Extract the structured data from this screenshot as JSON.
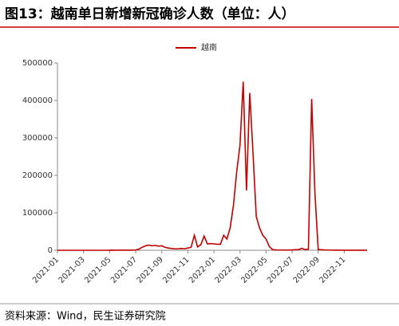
{
  "chart_data": {
    "type": "line",
    "title": "图13：越南单日新增新冠确诊人数（单位：人）",
    "source": "资料来源：Wind，民生证券研究院",
    "x": [
      "2021-01",
      "2021-01",
      "2021-01",
      "2021-01",
      "2021-02",
      "2021-02",
      "2021-02",
      "2021-02",
      "2021-03",
      "2021-03",
      "2021-03",
      "2021-03",
      "2021-04",
      "2021-04",
      "2021-04",
      "2021-04",
      "2021-05",
      "2021-05",
      "2021-05",
      "2021-05",
      "2021-06",
      "2021-06",
      "2021-06",
      "2021-06",
      "2021-07",
      "2021-07",
      "2021-07",
      "2021-07",
      "2021-08",
      "2021-08",
      "2021-08",
      "2021-08",
      "2021-09",
      "2021-09",
      "2021-09",
      "2021-09",
      "2021-10",
      "2021-10",
      "2021-10",
      "2021-10",
      "2021-11",
      "2021-11",
      "2021-11",
      "2021-11",
      "2021-12",
      "2021-12",
      "2021-12",
      "2021-12",
      "2022-01",
      "2022-01",
      "2022-01",
      "2022-01",
      "2022-02",
      "2022-02",
      "2022-02",
      "2022-02",
      "2022-03",
      "2022-03",
      "2022-03",
      "2022-03",
      "2022-04",
      "2022-04",
      "2022-04",
      "2022-04",
      "2022-05",
      "2022-05",
      "2022-05",
      "2022-05",
      "2022-06",
      "2022-06",
      "2022-06",
      "2022-06",
      "2022-07",
      "2022-07",
      "2022-07",
      "2022-07",
      "2022-08",
      "2022-08",
      "2022-08",
      "2022-08",
      "2022-09",
      "2022-09",
      "2022-09",
      "2022-09",
      "2022-10",
      "2022-10",
      "2022-10",
      "2022-10",
      "2022-11",
      "2022-11",
      "2022-11",
      "2022-11",
      "2022-12",
      "2022-12",
      "2022-12",
      "2022-12"
    ],
    "series": [
      {
        "name": "越南",
        "color": "#c00000",
        "values": [
          0,
          0,
          0,
          0,
          0,
          0,
          0,
          0,
          0,
          0,
          0,
          0,
          0,
          0,
          0,
          0,
          100,
          300,
          200,
          300,
          500,
          300,
          400,
          300,
          1000,
          3000,
          8000,
          12000,
          14000,
          12000,
          13000,
          11000,
          12000,
          8000,
          6000,
          5000,
          4000,
          4000,
          5000,
          4000,
          6000,
          8000,
          40000,
          9000,
          15000,
          38000,
          17000,
          18000,
          17000,
          16000,
          16000,
          40000,
          30000,
          60000,
          120000,
          210000,
          280000,
          450000,
          160000,
          420000,
          260000,
          90000,
          60000,
          40000,
          30000,
          10000,
          2000,
          1000,
          800,
          600,
          500,
          700,
          1000,
          1500,
          2000,
          5000,
          2000,
          3000,
          404000,
          153000,
          2000,
          1500,
          1000,
          800,
          500,
          400,
          300,
          300,
          200,
          200,
          200,
          200,
          100,
          100,
          100,
          100
        ]
      }
    ],
    "ylim": [
      0,
      500000
    ],
    "yticks": [
      0,
      100000,
      200000,
      300000,
      400000,
      500000
    ],
    "xticks": [
      "2021-01",
      "2021-03",
      "2021-05",
      "2021-07",
      "2021-09",
      "2021-11",
      "2022-01",
      "2022-03",
      "2022-05",
      "2022-07",
      "2022-09",
      "2022-11"
    ],
    "legend": "top"
  }
}
